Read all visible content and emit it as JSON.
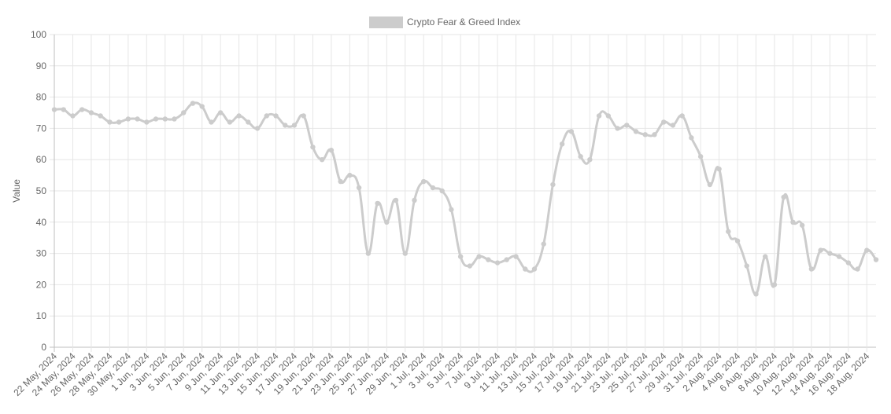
{
  "chart_data": {
    "type": "line",
    "title": "",
    "xlabel": "",
    "ylabel": "Value",
    "ylim": [
      0,
      100
    ],
    "yticks": [
      0,
      10,
      20,
      30,
      40,
      50,
      60,
      70,
      80,
      90,
      100
    ],
    "grid": true,
    "legend_position": "top",
    "series": [
      {
        "name": "Crypto Fear & Greed Index",
        "color": "#cccccc",
        "x": [
          "22 May, 2024",
          "23 May, 2024",
          "24 May, 2024",
          "25 May, 2024",
          "26 May, 2024",
          "27 May, 2024",
          "28 May, 2024",
          "29 May, 2024",
          "30 May, 2024",
          "31 May, 2024",
          "1 Jun, 2024",
          "2 Jun, 2024",
          "3 Jun, 2024",
          "4 Jun, 2024",
          "5 Jun, 2024",
          "6 Jun, 2024",
          "7 Jun, 2024",
          "8 Jun, 2024",
          "9 Jun, 2024",
          "10 Jun, 2024",
          "11 Jun, 2024",
          "12 Jun, 2024",
          "13 Jun, 2024",
          "14 Jun, 2024",
          "15 Jun, 2024",
          "16 Jun, 2024",
          "17 Jun, 2024",
          "18 Jun, 2024",
          "19 Jun, 2024",
          "20 Jun, 2024",
          "21 Jun, 2024",
          "22 Jun, 2024",
          "23 Jun, 2024",
          "24 Jun, 2024",
          "25 Jun, 2024",
          "26 Jun, 2024",
          "27 Jun, 2024",
          "28 Jun, 2024",
          "29 Jun, 2024",
          "30 Jun, 2024",
          "1 Jul, 2024",
          "2 Jul, 2024",
          "3 Jul, 2024",
          "4 Jul, 2024",
          "5 Jul, 2024",
          "6 Jul, 2024",
          "7 Jul, 2024",
          "8 Jul, 2024",
          "9 Jul, 2024",
          "10 Jul, 2024",
          "11 Jul, 2024",
          "12 Jul, 2024",
          "13 Jul, 2024",
          "14 Jul, 2024",
          "15 Jul, 2024",
          "16 Jul, 2024",
          "17 Jul, 2024",
          "18 Jul, 2024",
          "19 Jul, 2024",
          "20 Jul, 2024",
          "21 Jul, 2024",
          "22 Jul, 2024",
          "23 Jul, 2024",
          "24 Jul, 2024",
          "25 Jul, 2024",
          "26 Jul, 2024",
          "27 Jul, 2024",
          "28 Jul, 2024",
          "29 Jul, 2024",
          "30 Jul, 2024",
          "31 Jul, 2024",
          "1 Aug, 2024",
          "2 Aug, 2024",
          "3 Aug, 2024",
          "4 Aug, 2024",
          "5 Aug, 2024",
          "6 Aug, 2024",
          "7 Aug, 2024",
          "8 Aug, 2024",
          "9 Aug, 2024",
          "10 Aug, 2024",
          "11 Aug, 2024",
          "12 Aug, 2024",
          "13 Aug, 2024",
          "14 Aug, 2024",
          "15 Aug, 2024",
          "16 Aug, 2024",
          "17 Aug, 2024",
          "18 Aug, 2024",
          "19 Aug, 2024"
        ],
        "values": [
          76,
          76,
          74,
          76,
          75,
          74,
          72,
          72,
          73,
          73,
          72,
          73,
          73,
          73,
          75,
          78,
          77,
          72,
          75,
          72,
          74,
          72,
          70,
          74,
          74,
          71,
          71,
          74,
          64,
          60,
          63,
          53,
          55,
          51,
          30,
          46,
          40,
          47,
          30,
          47,
          53,
          51,
          50,
          44,
          29,
          26,
          29,
          28,
          27,
          28,
          29,
          25,
          25,
          33,
          52,
          65,
          69,
          61,
          60,
          74,
          74,
          70,
          71,
          69,
          68,
          68,
          72,
          71,
          74,
          67,
          61,
          52,
          57,
          37,
          34,
          26,
          17,
          29,
          20,
          48,
          40,
          39,
          25,
          31,
          30,
          29,
          27,
          25,
          31,
          28
        ]
      }
    ],
    "x_tick_labels": [
      "22 May, 2024",
      "24 May, 2024",
      "26 May, 2024",
      "28 May, 2024",
      "30 May, 2024",
      "1 Jun, 2024",
      "3 Jun, 2024",
      "5 Jun, 2024",
      "7 Jun, 2024",
      "9 Jun, 2024",
      "11 Jun, 2024",
      "13 Jun, 2024",
      "15 Jun, 2024",
      "17 Jun, 2024",
      "19 Jun, 2024",
      "21 Jun, 2024",
      "23 Jun, 2024",
      "25 Jun, 2024",
      "27 Jun, 2024",
      "29 Jun, 2024",
      "1 Jul, 2024",
      "3 Jul, 2024",
      "5 Jul, 2024",
      "7 Jul, 2024",
      "9 Jul, 2024",
      "11 Jul, 2024",
      "13 Jul, 2024",
      "15 Jul, 2024",
      "17 Jul, 2024",
      "19 Jul, 2024",
      "21 Jul, 2024",
      "23 Jul, 2024",
      "25 Jul, 2024",
      "27 Jul, 2024",
      "29 Jul, 2024",
      "31 Jul, 2024",
      "2 Aug, 2024",
      "4 Aug, 2024",
      "6 Aug, 2024",
      "8 Aug, 2024",
      "10 Aug, 2024",
      "12 Aug, 2024",
      "14 Aug, 2024",
      "16 Aug, 2024",
      "18 Aug, 2024"
    ]
  }
}
